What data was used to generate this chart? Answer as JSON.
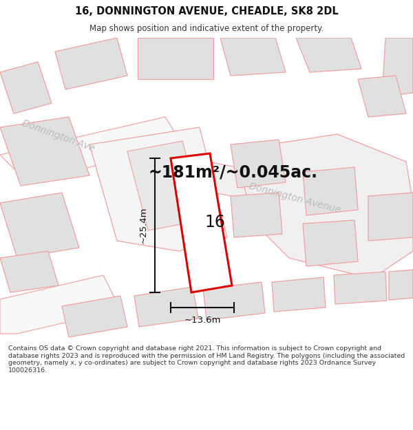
{
  "title": "16, DONNINGTON AVENUE, CHEADLE, SK8 2DL",
  "subtitle": "Map shows position and indicative extent of the property.",
  "area_text": "~181m²/~0.045ac.",
  "number_label": "16",
  "dim_width": "~13.6m",
  "dim_height": "~25.4m",
  "street_label_top": "Donnington Ave",
  "street_label_main": "Donnington Avenue",
  "footer_text": "Contains OS data © Crown copyright and database right 2021. This information is subject to Crown copyright and database rights 2023 and is reproduced with the permission of HM Land Registry. The polygons (including the associated geometry, namely x, y co-ordinates) are subject to Crown copyright and database rights 2023 Ordnance Survey 100026316.",
  "background_color": "#ffffff",
  "plot_line_color": "#f0a0a0",
  "highlight_color": "#dd0000",
  "building_color": "#e0e0e0",
  "street_text_color": "#bbbbbb",
  "dim_line_color": "#111111",
  "title_color": "#111111",
  "subtitle_color": "#333333",
  "footer_color": "#333333",
  "area_text_color": "#111111"
}
